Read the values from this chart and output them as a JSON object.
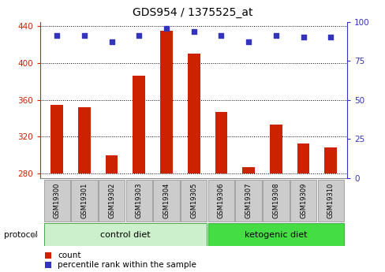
{
  "title": "GDS954 / 1375525_at",
  "samples": [
    "GSM19300",
    "GSM19301",
    "GSM19302",
    "GSM19303",
    "GSM19304",
    "GSM19305",
    "GSM19306",
    "GSM19307",
    "GSM19308",
    "GSM19309",
    "GSM19310"
  ],
  "bar_values": [
    355,
    352,
    300,
    386,
    435,
    410,
    347,
    287,
    333,
    313,
    308
  ],
  "dot_values": [
    91,
    91,
    87,
    91,
    96,
    94,
    91,
    87,
    91,
    90,
    90
  ],
  "bar_bottom": 280,
  "ylim_left": [
    275,
    445
  ],
  "ylim_right": [
    0,
    100
  ],
  "yticks_left": [
    280,
    320,
    360,
    400,
    440
  ],
  "yticks_right": [
    0,
    25,
    50,
    75,
    100
  ],
  "bar_color": "#cc2200",
  "dot_color": "#3333bb",
  "control_diet_indices": [
    0,
    1,
    2,
    3,
    4,
    5
  ],
  "ketogenic_diet_indices": [
    6,
    7,
    8,
    9,
    10
  ],
  "control_label": "control diet",
  "ketogenic_label": "ketogenic diet",
  "protocol_label": "protocol",
  "legend_count": "count",
  "legend_percentile": "percentile rank within the sample",
  "left_axis_color": "#cc2200",
  "right_axis_color": "#3333bb",
  "tick_bg_color": "#cccccc",
  "control_bg": "#ccf0cc",
  "ketogenic_bg": "#44dd44",
  "border_color": "#888888"
}
